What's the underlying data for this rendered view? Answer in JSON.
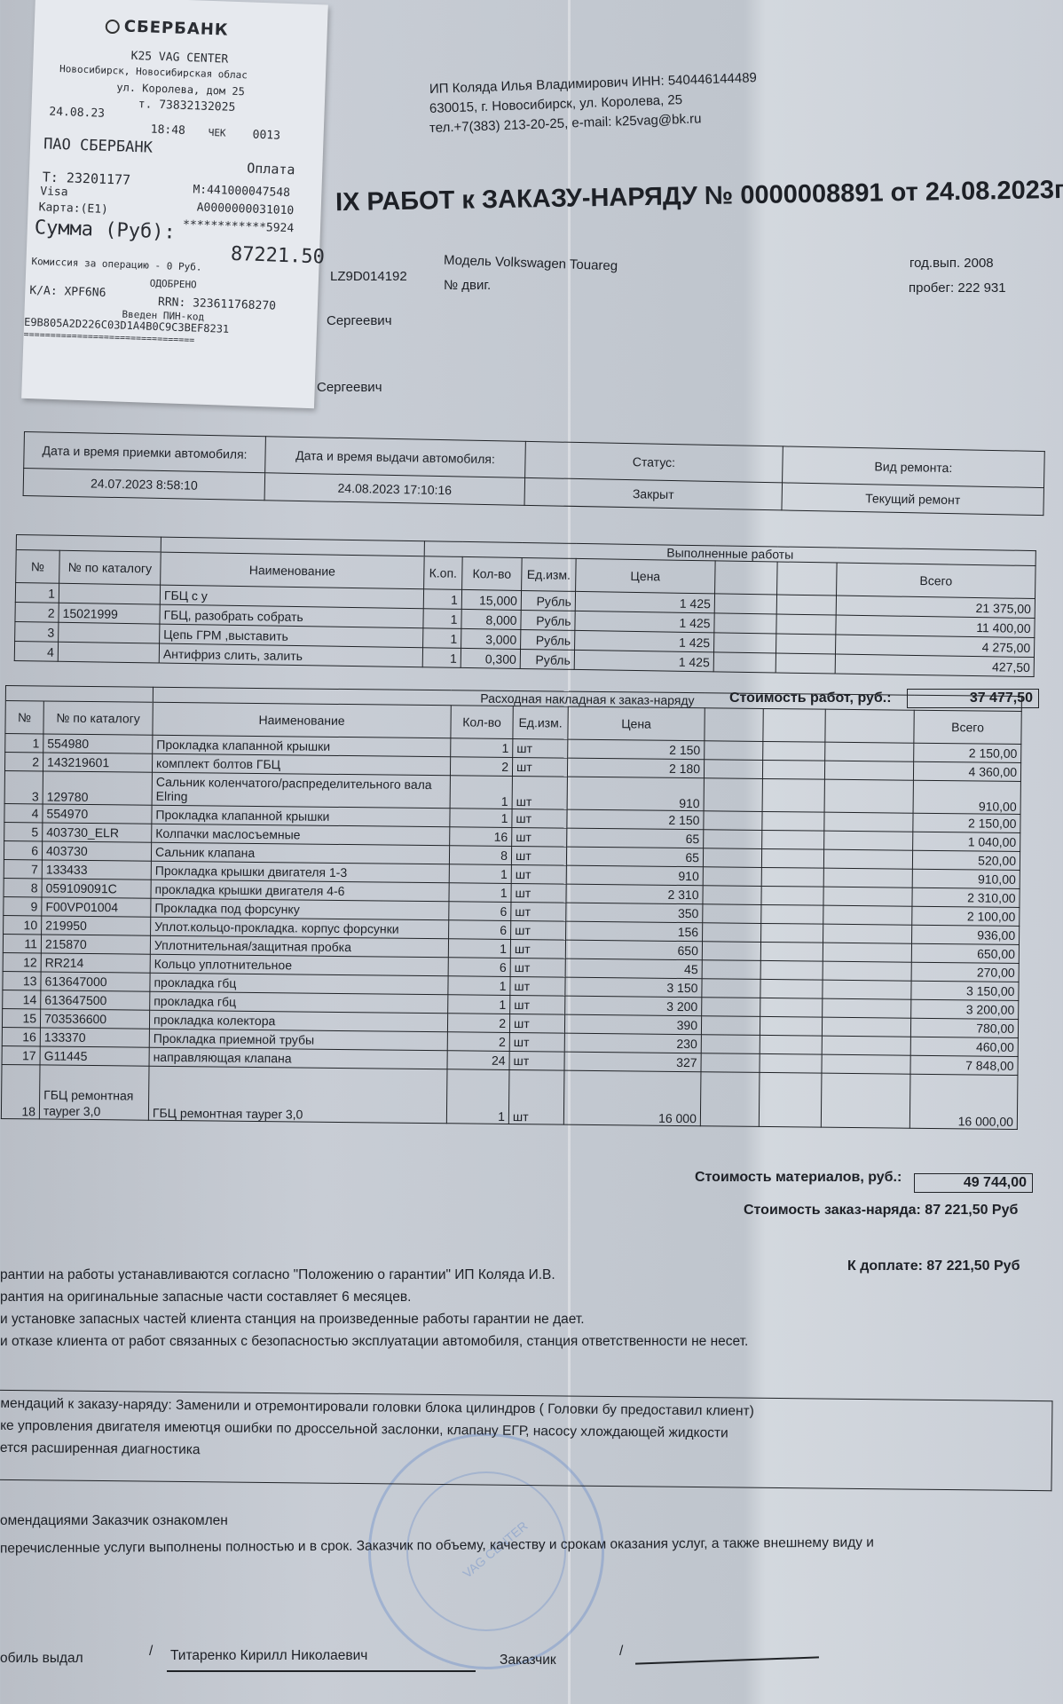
{
  "receipt": {
    "bank": "СБЕРБАНК",
    "merchant": "K25 VAG CENTER",
    "city_line": "Новосибирск, Новосибирская облас",
    "street_line": "ул. Королева, дом 25",
    "phone_line": "т. 73832132025",
    "date": "24.08.23",
    "time": "18:48",
    "check_label": "ЧЕК",
    "check_no": "0013",
    "acquirer": "ПАО СБЕРБАНК",
    "operation": "Оплата",
    "terminal": "Т: 23201177",
    "merchant_id": "М:441000047548",
    "card_type": "Visa",
    "aid": "A0000000031010",
    "card_label": "Карта:(E1)",
    "card_mask": "************5924",
    "sum_label": "Сумма (Руб):",
    "sum": "87221.50",
    "commission": "Комиссия за операцию - 0 Руб.",
    "status": "ОДОБРЕНО",
    "auth_code": "К/А: XPF6N6",
    "rrn": "RRN:  323611768270",
    "pin": "Введен ПИН-код",
    "hash": "E9B805A2D226C03D1A4B0C9C3BEF8231",
    "divider": "================================"
  },
  "company": {
    "line1": "ИП Коляда Илья Владимирович ИНН: 540446144489",
    "line2": "630015, г. Новосибирск, ул. Королева, 25",
    "line3": "тел.+7(383) 213-20-25, e-mail: k25vag@bk.ru"
  },
  "title": "ІХ РАБОТ к ЗАКАЗУ-НАРЯДУ № 0000008891 от 24.08.2023г.",
  "vehicle": {
    "vin_fragment": "LZ9D014192",
    "model": "Модель Volkswagen Touareg",
    "engine": "№ двиг.",
    "year": "год.вып. 2008",
    "mileage": "пробег: 222 931",
    "person1": "Сергеевич",
    "person2": "Сергеевич"
  },
  "dates": {
    "received_label": "Дата и время приемки автомобиля:",
    "received": "24.07.2023 8:58:10",
    "issued_label": "Дата и время выдачи автомобиля:",
    "issued": "24.08.2023 17:10:16",
    "status_label": "Статус:",
    "status": "Закрыт",
    "repair_label": "Вид ремонта:",
    "repair": "Текущий ремонт"
  },
  "works": {
    "caption": "Выполненные работы",
    "headers": {
      "no": "№",
      "catalog": "№ по каталогу",
      "name": "Наименование",
      "kop": "К.оп.",
      "qty": "Кол-во",
      "unit": "Ед.изм.",
      "price": "Цена",
      "total": "Всего"
    },
    "rows": [
      {
        "no": "1",
        "catalog": "",
        "name": "ГБЦ с у",
        "kop": "1",
        "qty": "15,000",
        "unit": "Рубль",
        "price": "1 425",
        "total": "21 375,00"
      },
      {
        "no": "2",
        "catalog": "15021999",
        "name": "ГБЦ, разобрать собрать",
        "kop": "1",
        "qty": "8,000",
        "unit": "Рубль",
        "price": "1 425",
        "total": "11 400,00"
      },
      {
        "no": "3",
        "catalog": "",
        "name": "Цепь ГРМ ,выставить",
        "kop": "1",
        "qty": "3,000",
        "unit": "Рубль",
        "price": "1 425",
        "total": "4 275,00"
      },
      {
        "no": "4",
        "catalog": "",
        "name": "Антифриз слить, залить",
        "kop": "1",
        "qty": "0,300",
        "unit": "Рубль",
        "price": "1 425",
        "total": "427,50"
      }
    ],
    "sum_label": "Стоимость работ, руб.:",
    "sum": "37 477,50"
  },
  "materials": {
    "caption": "Расходная накладная к заказ-наряду",
    "headers": {
      "no": "№",
      "catalog": "№ по каталогу",
      "name": "Наименование",
      "qty": "Кол-во",
      "unit": "Ед.изм.",
      "price": "Цена",
      "total": "Всего"
    },
    "rows": [
      {
        "no": "1",
        "catalog": "554980",
        "name": "Прокладка клапанной крышки",
        "qty": "1",
        "unit": "шт",
        "price": "2 150",
        "total": "2 150,00"
      },
      {
        "no": "2",
        "catalog": "143219601",
        "name": "комплект болтов ГБЦ",
        "qty": "2",
        "unit": "шт",
        "price": "2 180",
        "total": "4 360,00"
      },
      {
        "no": "3",
        "catalog": "129780",
        "name": "Сальник коленчатого/распределительного вала Elring",
        "qty": "1",
        "unit": "шт",
        "price": "910",
        "total": "910,00"
      },
      {
        "no": "4",
        "catalog": "554970",
        "name": "Прокладка клапанной крышки",
        "qty": "1",
        "unit": "шт",
        "price": "2 150",
        "total": "2 150,00"
      },
      {
        "no": "5",
        "catalog": "403730_ELR",
        "name": "Колпачки маслосъемные",
        "qty": "16",
        "unit": "шт",
        "price": "65",
        "total": "1 040,00"
      },
      {
        "no": "6",
        "catalog": "403730",
        "name": "Сальник клапана",
        "qty": "8",
        "unit": "шт",
        "price": "65",
        "total": "520,00"
      },
      {
        "no": "7",
        "catalog": "133433",
        "name": "Прокладка крышки двигателя 1-3",
        "qty": "1",
        "unit": "шт",
        "price": "910",
        "total": "910,00"
      },
      {
        "no": "8",
        "catalog": "059109091C",
        "name": "прокладка крышки двигателя 4-6",
        "qty": "1",
        "unit": "шт",
        "price": "2 310",
        "total": "2 310,00"
      },
      {
        "no": "9",
        "catalog": "F00VP01004",
        "name": "Прокладка под форсунку",
        "qty": "6",
        "unit": "шт",
        "price": "350",
        "total": "2 100,00"
      },
      {
        "no": "10",
        "catalog": "219950",
        "name": "Уплот.кольцо-прокладка. корпус форсунки",
        "qty": "6",
        "unit": "шт",
        "price": "156",
        "total": "936,00"
      },
      {
        "no": "11",
        "catalog": "215870",
        "name": "Уплотнительная/защитная пробка",
        "qty": "1",
        "unit": "шт",
        "price": "650",
        "total": "650,00"
      },
      {
        "no": "12",
        "catalog": "RR214",
        "name": "Кольцо уплотнительное",
        "qty": "6",
        "unit": "шт",
        "price": "45",
        "total": "270,00"
      },
      {
        "no": "13",
        "catalog": "613647000",
        "name": "прокладка гбц",
        "qty": "1",
        "unit": "шт",
        "price": "3 150",
        "total": "3 150,00"
      },
      {
        "no": "14",
        "catalog": "613647500",
        "name": "прокладка гбц",
        "qty": "1",
        "unit": "шт",
        "price": "3 200",
        "total": "3 200,00"
      },
      {
        "no": "15",
        "catalog": "703536600",
        "name": "прокладка колектора",
        "qty": "2",
        "unit": "шт",
        "price": "390",
        "total": "780,00"
      },
      {
        "no": "16",
        "catalog": "133370",
        "name": "Прокладка приемной трубы",
        "qty": "2",
        "unit": "шт",
        "price": "230",
        "total": "460,00"
      },
      {
        "no": "17",
        "catalog": "G11445",
        "name": "направляющая клапана",
        "qty": "24",
        "unit": "шт",
        "price": "327",
        "total": "7 848,00"
      },
      {
        "no": "18",
        "catalog": "ГБЦ ремонтная тауреr 3,0",
        "name": "ГБЦ ремонтная тауреr 3,0",
        "qty": "1",
        "unit": "шт",
        "price": "16 000",
        "total": "16 000,00"
      }
    ],
    "sum_label": "Стоимость материалов, руб.:",
    "sum": "49 744,00"
  },
  "totals": {
    "order_total": "Стоимость заказ-наряда: 87 221,50 Руб",
    "to_pay": "К доплате: 87 221,50 Руб"
  },
  "warranty": [
    "рантии на работы устанавливаются согласно \"Положению о гарантии\" ИП Коляда И.В.",
    "рантия на оригинальные запасные части составляет 6 месяцев.",
    "и установке запасных частей клиента станция на произведенные работы гарантии не дает.",
    "и отказе клиента от работ связанных с безопасностью эксплуатации автомобиля, станция ответственности не несет."
  ],
  "recommendations": [
    "мендаций к заказу-наряду: Заменили и отремонтировали головки блока цилиндров ( Головки бу предоставил клиент)",
    "ке упровления двигателя имеютця ошибки по дроссельной заслонки, клапану ЕГР, насосу хлождающей жидкости",
    "ется расширенная диагностика"
  ],
  "acknowledged": "омендациями Заказчик ознакомлен",
  "acceptance": "перечисленные услуги выполнены полностью и в срок. Заказчик по объему, качеству и срокам оказания услуг, а также внешнему виду и",
  "signatures": {
    "issued_label": "обиль выдал",
    "slash": "/",
    "issuer": "Титаренко Кирилл Николаевич",
    "customer_label": "Заказчик"
  },
  "stamp_text": "VAG CENTER"
}
